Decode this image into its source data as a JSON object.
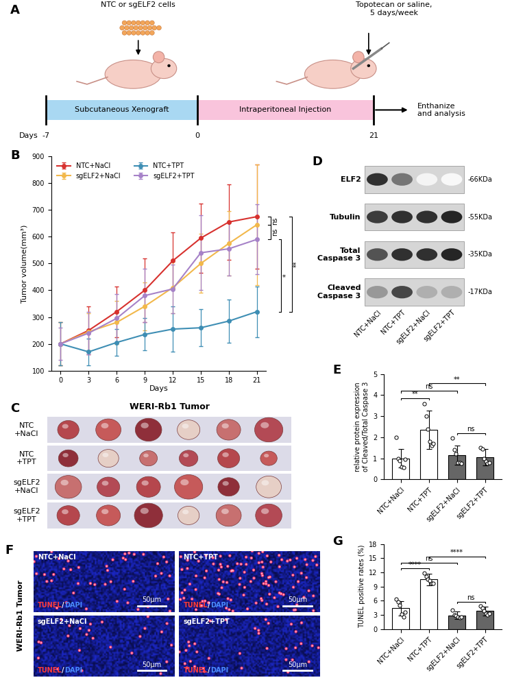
{
  "panel_labels": [
    "A",
    "B",
    "C",
    "D",
    "E",
    "F",
    "G"
  ],
  "schematic": {
    "cells_label": "NTC or sgELF2 cells",
    "treatment_label": "Topotecan or saline,\n5 days/week",
    "phase1": "Subcutaneous Xenograft",
    "phase2": "Intraperitoneal Injection",
    "axis_label": "Days",
    "day_labels": [
      "-7",
      "0",
      "21"
    ],
    "endpoint": "Enthanize\nand analysis"
  },
  "chart_data": [
    {
      "type": "line",
      "x": [
        0,
        3,
        6,
        9,
        12,
        15,
        18,
        21
      ],
      "xlim": [
        -1,
        22
      ],
      "xticks": [
        0,
        3,
        6,
        9,
        12,
        15,
        18,
        21
      ],
      "ylim": [
        100,
        900
      ],
      "yticks": [
        100,
        200,
        300,
        400,
        500,
        600,
        700,
        800,
        900
      ],
      "x_label": "Days",
      "y_label": "Tumor volume(mm³)",
      "legend": "upper left",
      "series": [
        {
          "name": "NTC+NaCl",
          "color": "#d7312e",
          "marker": "o",
          "values": [
            200,
            250,
            320,
            400,
            510,
            595,
            655,
            675
          ],
          "errors": [
            80,
            90,
            95,
            120,
            105,
            130,
            140,
            195
          ]
        },
        {
          "name": "sgELF2+NaCl",
          "color": "#f2b84b",
          "marker": "o",
          "values": [
            200,
            245,
            280,
            340,
            410,
            500,
            575,
            645
          ],
          "errors": [
            80,
            70,
            80,
            90,
            95,
            110,
            120,
            225
          ]
        },
        {
          "name": "NTC+TPT",
          "color": "#3e8eb4",
          "marker": "o",
          "values": [
            200,
            170,
            205,
            235,
            255,
            260,
            285,
            320
          ],
          "errors": [
            80,
            50,
            50,
            60,
            85,
            70,
            80,
            95
          ]
        },
        {
          "name": "sgELF2+TPT",
          "color": "#a682c8",
          "marker": "o",
          "values": [
            200,
            240,
            295,
            380,
            405,
            540,
            555,
            590
          ],
          "errors": [
            60,
            80,
            90,
            100,
            90,
            140,
            100,
            130
          ]
        }
      ],
      "annotations": [
        {
          "text": "ns",
          "between": [
            "NTC+NaCl",
            "sgELF2+NaCl"
          ]
        },
        {
          "text": "ns",
          "between": [
            "sgELF2+NaCl",
            "sgELF2+TPT"
          ]
        },
        {
          "text": "*",
          "between": [
            "sgELF2+TPT",
            "NTC+TPT"
          ]
        },
        {
          "text": "**",
          "between": [
            "NTC+NaCl",
            "NTC+TPT"
          ]
        }
      ]
    },
    {
      "type": "bar",
      "categories": [
        "NTC+NaCl",
        "NTC+TPT",
        "sgELF2+NaCl",
        "sgELF2+TPT"
      ],
      "values": [
        1.0,
        2.35,
        1.15,
        1.05
      ],
      "errors": [
        0.45,
        0.9,
        0.45,
        0.4
      ],
      "points": [
        [
          2.0,
          1.0,
          0.9,
          0.6,
          0.55,
          0.95
        ],
        [
          3.6,
          3.0,
          2.4,
          1.8,
          1.6,
          1.7
        ],
        [
          1.95,
          1.4,
          1.2,
          0.8,
          0.8,
          0.75
        ],
        [
          1.5,
          1.45,
          1.0,
          0.85,
          0.75,
          0.8
        ]
      ],
      "colors": [
        "#ffffff",
        "#ffffff",
        "#666666",
        "#666666"
      ],
      "ylim": [
        0,
        5
      ],
      "yticks": [
        0,
        1,
        2,
        3,
        4,
        5
      ],
      "y_label": "relative protein expression\nof Cleaved/Total Caspase 3",
      "annotations": [
        {
          "text": "ns",
          "between": [
            "NTC+NaCl",
            "sgELF2+NaCl"
          ]
        },
        {
          "text": "**",
          "between": [
            "NTC+NaCl",
            "NTC+TPT"
          ]
        },
        {
          "text": "**",
          "between": [
            "NTC+TPT",
            "sgELF2+TPT"
          ]
        },
        {
          "text": "ns",
          "between": [
            "sgELF2+NaCl",
            "sgELF2+TPT"
          ]
        }
      ]
    },
    {
      "type": "bar",
      "categories": [
        "NTC+NaCl",
        "NTC+TPT",
        "sgELF2+NaCl",
        "sgELF2+TPT"
      ],
      "values": [
        4.4,
        10.5,
        2.9,
        3.8
      ],
      "errors": [
        1.5,
        1.2,
        0.8,
        1.0
      ],
      "points": [
        [
          6.3,
          5.8,
          5.0,
          3.2,
          2.6,
          3.5
        ],
        [
          11.9,
          11.1,
          10.6,
          10.2,
          9.6,
          9.6
        ],
        [
          4.0,
          3.0,
          2.9,
          2.6,
          2.4,
          2.5
        ],
        [
          4.9,
          4.5,
          3.8,
          3.3,
          3.0,
          3.3
        ]
      ],
      "colors": [
        "#ffffff",
        "#ffffff",
        "#666666",
        "#666666"
      ],
      "ylim": [
        0,
        18
      ],
      "yticks": [
        0,
        3,
        6,
        9,
        12,
        15,
        18
      ],
      "y_label": "TUNEL positive rates (%)",
      "annotations": [
        {
          "text": "ns",
          "between": [
            "NTC+NaCl",
            "sgELF2+NaCl"
          ]
        },
        {
          "text": "****",
          "between": [
            "NTC+NaCl",
            "NTC+TPT"
          ]
        },
        {
          "text": "****",
          "between": [
            "NTC+TPT",
            "sgELF2+TPT"
          ]
        },
        {
          "text": "ns",
          "between": [
            "sgELF2+NaCl",
            "sgELF2+TPT"
          ]
        }
      ]
    }
  ],
  "tumor_photos": {
    "title": "WERI-Rb1 Tumor",
    "rows": [
      "NTC\n+NaCl",
      "NTC\n+TPT",
      "sgELF2\n+NaCl",
      "sgELF2\n+TPT"
    ]
  },
  "western_blot": {
    "proteins": [
      "ELF2",
      "Tubulin",
      "Total\nCaspase 3",
      "Cleaved\nCaspase 3"
    ],
    "sizes": [
      "-66KDa",
      "-55KDa",
      "-35KDa",
      "-17KDa"
    ],
    "lanes": [
      "NTC+NaCl",
      "NTC+TPT",
      "sgELF2+NaCl",
      "sgELF2+TPT"
    ]
  },
  "tunel_images": {
    "side_label": "WERI-Rb1 Tumor",
    "images": [
      "NTC+NaCl",
      "NTC+TPT",
      "sgELF2+NaCl",
      "sgELF2+TPT"
    ],
    "stain_labels": [
      "TUNEL",
      "/",
      "DAPI"
    ],
    "scale_bar": "50μm"
  }
}
